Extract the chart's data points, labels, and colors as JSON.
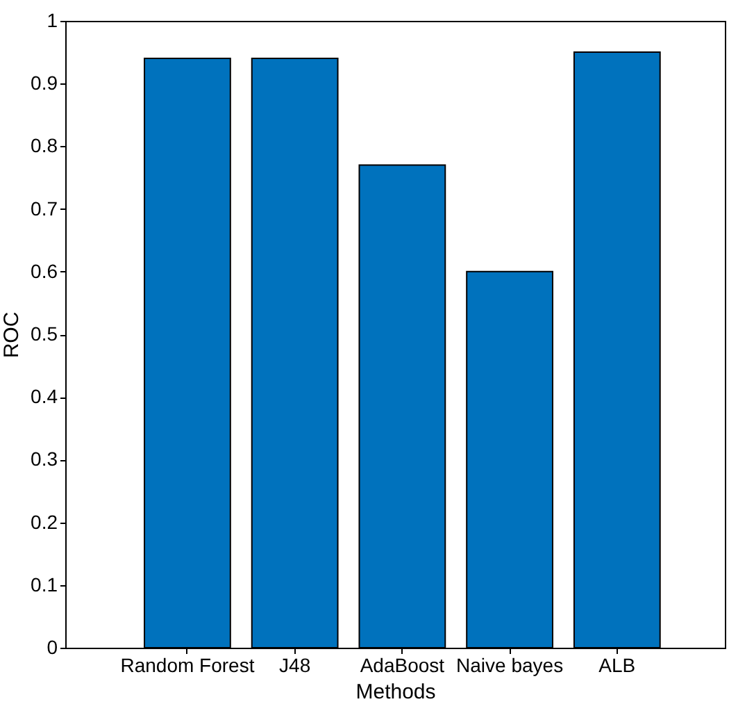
{
  "chart_data": {
    "type": "bar",
    "xlabel": "Methods",
    "ylabel": "ROC",
    "categories": [
      "Random Forest",
      "J48",
      "AdaBoost",
      "Naive bayes",
      "ALB"
    ],
    "values": [
      0.94,
      0.94,
      0.77,
      0.6,
      0.95
    ],
    "color": "#0072bd",
    "ylim": [
      0,
      1
    ],
    "yticks": [
      0,
      0.1,
      0.2,
      0.3,
      0.4,
      0.5,
      0.6,
      0.7,
      0.8,
      0.9,
      1
    ],
    "grid": false
  }
}
